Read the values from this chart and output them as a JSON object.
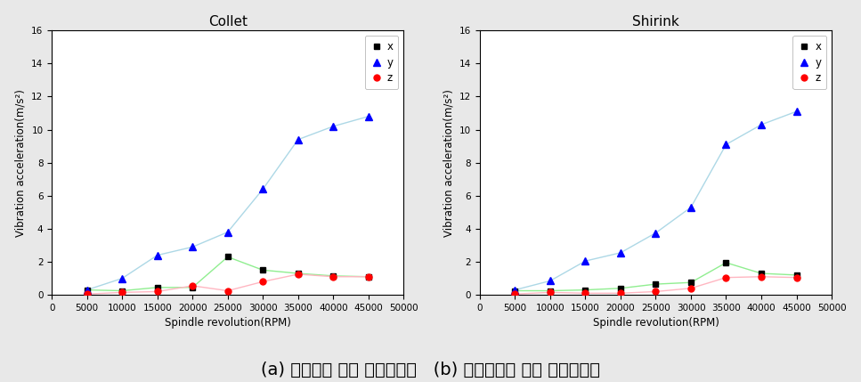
{
  "rpm": [
    5000,
    10000,
    15000,
    20000,
    25000,
    30000,
    35000,
    40000,
    45000
  ],
  "collet": {
    "x": [
      0.3,
      0.25,
      0.45,
      0.45,
      2.3,
      1.5,
      1.3,
      1.15,
      1.1
    ],
    "y": [
      0.3,
      1.0,
      2.4,
      2.9,
      3.8,
      6.4,
      9.4,
      10.2,
      10.8
    ],
    "z": [
      0.05,
      0.15,
      0.2,
      0.55,
      0.25,
      0.8,
      1.25,
      1.1,
      1.1
    ]
  },
  "shirink": {
    "x": [
      0.25,
      0.25,
      0.3,
      0.4,
      0.65,
      0.75,
      1.95,
      1.3,
      1.2
    ],
    "y": [
      0.3,
      0.85,
      2.05,
      2.55,
      3.75,
      5.3,
      9.1,
      10.3,
      11.1
    ],
    "z": [
      0.05,
      0.15,
      0.1,
      0.1,
      0.2,
      0.4,
      1.05,
      1.1,
      1.05
    ]
  },
  "title_left": "Collet",
  "title_right": "Shirink",
  "xlabel": "Spindle revolution(RPM)",
  "ylabel": "Vibration acceleration(m/s²)",
  "xlim": [
    0,
    50000
  ],
  "ylim": [
    0,
    16
  ],
  "xticks": [
    0,
    5000,
    10000,
    15000,
    20000,
    25000,
    30000,
    35000,
    40000,
    45000,
    50000
  ],
  "yticks": [
    0,
    2,
    4,
    6,
    8,
    10,
    12,
    14,
    16
  ],
  "legend_labels": [
    "x",
    "y",
    "z"
  ],
  "x_color": "#000000",
  "y_color": "#0000ff",
  "z_color": "#ff0000",
  "line_color_x": "#90ee90",
  "line_color_y": "#add8e6",
  "line_color_z": "#ffb6c1",
  "caption": "(a) 콜렉첨에 의한 진동가속도   (b) 열박음첨에 의한 진동가속도",
  "caption_fontsize": 14,
  "bg_color": "#e8e8e8"
}
